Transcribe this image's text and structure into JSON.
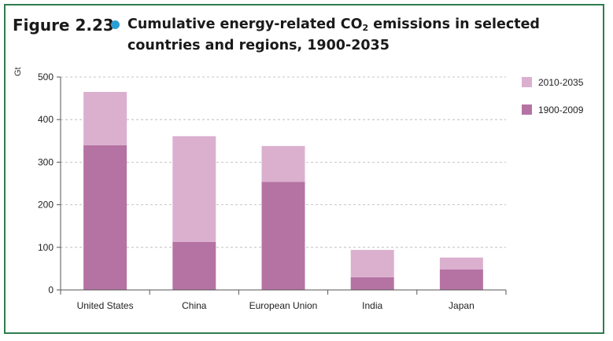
{
  "figure": {
    "label": "Figure 2.23",
    "title_main": "Cumulative energy-related CO",
    "title_sub": "2",
    "title_rest": " emissions in selected countries and regions, 1900-2035"
  },
  "colors": {
    "frame": "#2f7d4f",
    "dot": "#2a9fd6",
    "series_1900_2009": "#b573a3",
    "series_2010_2035": "#dbb0cf"
  },
  "chart_data": {
    "type": "bar",
    "stacked": true,
    "ylabel": "Gt",
    "ylim": [
      0,
      500
    ],
    "yticks": [
      0,
      100,
      200,
      300,
      400,
      500
    ],
    "grid": "horizontal dashed",
    "legend_position": "top-right",
    "categories": [
      "United States",
      "China",
      "European Union",
      "India",
      "Japan"
    ],
    "series": [
      {
        "name": "1900-2009",
        "values": [
          340,
          113,
          254,
          30,
          48
        ]
      },
      {
        "name": "2010-2035",
        "values": [
          125,
          248,
          84,
          64,
          28
        ]
      }
    ],
    "legend_order": [
      "2010-2035",
      "1900-2009"
    ]
  }
}
